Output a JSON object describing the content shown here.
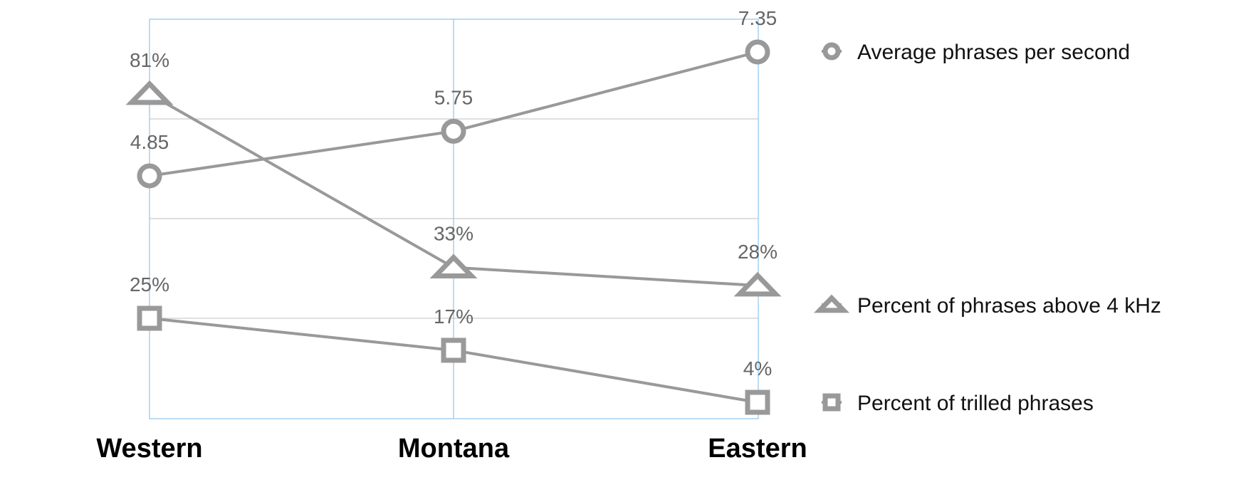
{
  "chart_data": {
    "type": "line",
    "categories": [
      "Western",
      "Montana",
      "Eastern"
    ],
    "series": [
      {
        "name": "Average phrases per second",
        "values": [
          4.85,
          5.75,
          7.35
        ],
        "labels": [
          "4.85",
          "5.75",
          "7.35"
        ],
        "marker": "circle",
        "color": "#999999"
      },
      {
        "name": "Percent of phrases above 4 kHz",
        "values": [
          81,
          33,
          28
        ],
        "labels": [
          "81%",
          "33%",
          "28%"
        ],
        "marker": "triangle",
        "color": "#999999"
      },
      {
        "name": "Percent of trilled phrases",
        "values": [
          25,
          17,
          4
        ],
        "labels": [
          "25%",
          "17%",
          "4%"
        ],
        "marker": "square",
        "color": "#999999"
      }
    ],
    "grid": true,
    "gridColor": "#cccccc",
    "plotBorderColor": "#8ec5ee",
    "legend_position": "right"
  }
}
